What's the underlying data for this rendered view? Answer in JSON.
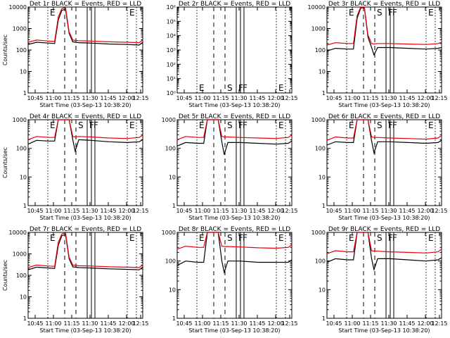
{
  "figure": {
    "x_tick_labels": [
      "10:45",
      "11:00",
      "11:15",
      "11:30",
      "11:45",
      "12:00",
      "12:15"
    ],
    "x_label": "Start Time (03-Sep-13 10:38:20)",
    "y_label": "Counts/sec",
    "black_color": "#000000",
    "red_color": "#e8000b"
  },
  "chart_data": [
    {
      "type": "line",
      "title": "Det 1r BLACK = Events, RED = LLD",
      "xlabel": "Start Time (03-Sep-13 10:38:20)",
      "ylabel": "Counts/sec",
      "y_scale": "log",
      "ylim": [
        1,
        10000
      ],
      "y_tick_labels": [
        "1",
        "10",
        "100",
        "1000",
        "10000"
      ],
      "x": [
        "10:38",
        "10:45",
        "10:55",
        "11:00",
        "11:03",
        "11:06",
        "11:09",
        "11:12",
        "11:15",
        "11:20",
        "11:30",
        "11:45",
        "12:00",
        "12:10",
        "12:13"
      ],
      "series": [
        {
          "name": "BLACK = Events",
          "values": [
            180,
            230,
            210,
            200,
            2500,
            7000,
            8000,
            600,
            240,
            220,
            210,
            190,
            180,
            170,
            230
          ]
        },
        {
          "name": "RED = LLD",
          "values": [
            230,
            290,
            260,
            250,
            3500,
            8500,
            9500,
            700,
            290,
            270,
            260,
            240,
            230,
            220,
            290
          ]
        }
      ],
      "markers": [
        {
          "style": "dotted",
          "label": "E"
        },
        {
          "style": "dashed",
          "label": ""
        },
        {
          "style": "dashed",
          "label": ""
        },
        {
          "style": "solid",
          "label": ""
        },
        {
          "style": "solid",
          "label": ""
        },
        {
          "style": "solid",
          "label": ""
        },
        {
          "style": "dotted",
          "label": "E"
        },
        {
          "style": "dotted",
          "label": ""
        }
      ]
    },
    {
      "type": "line",
      "title": "Det 2r BLACK = Events, RED = LLD",
      "xlabel": "Start Time (03-Sep-13 10:38:20)",
      "ylabel": "",
      "y_scale": "log",
      "ylim": [
        1,
        1000000
      ],
      "y_tick_labels": [
        "10⁰",
        "10¹",
        "10²",
        "10³",
        "10⁴",
        "10⁵",
        "10⁶"
      ],
      "x": [],
      "series": [],
      "markers": [
        {
          "style": "dotted",
          "label": "E"
        },
        {
          "style": "dashed",
          "label": ""
        },
        {
          "style": "dashed",
          "label": "S"
        },
        {
          "style": "solid",
          "label": "F"
        },
        {
          "style": "solid",
          "label": "F"
        },
        {
          "style": "solid",
          "label": ""
        },
        {
          "style": "dotted",
          "label": "E"
        },
        {
          "style": "dotted",
          "label": ""
        }
      ]
    },
    {
      "type": "line",
      "title": "Det 3r BLACK = Events, RED = LLD",
      "xlabel": "Start Time (03-Sep-13 10:38:20)",
      "ylabel": "",
      "y_scale": "log",
      "ylim": [
        1,
        10000
      ],
      "y_tick_labels": [
        "1",
        "10",
        "100",
        "1000",
        "10000"
      ],
      "x": [
        "10:38",
        "10:45",
        "10:55",
        "11:00",
        "11:03",
        "11:06",
        "11:09",
        "11:12",
        "11:15",
        "11:17",
        "11:20",
        "11:30",
        "11:45",
        "12:00",
        "12:10",
        "12:13"
      ],
      "series": [
        {
          "name": "BLACK = Events",
          "values": [
            90,
            120,
            110,
            110,
            3000,
            9000,
            9500,
            400,
            130,
            60,
            130,
            130,
            120,
            110,
            120,
            130
          ]
        },
        {
          "name": "RED = LLD",
          "values": [
            170,
            220,
            200,
            200,
            4000,
            10000,
            10000,
            500,
            200,
            190,
            200,
            200,
            190,
            180,
            200,
            230
          ]
        }
      ],
      "markers": [
        {
          "style": "dotted",
          "label": "E"
        },
        {
          "style": "dashed",
          "label": ""
        },
        {
          "style": "dashed",
          "label": "S"
        },
        {
          "style": "solid",
          "label": "F"
        },
        {
          "style": "solid",
          "label": "F"
        },
        {
          "style": "solid",
          "label": ""
        },
        {
          "style": "dotted",
          "label": "E"
        },
        {
          "style": "dotted",
          "label": ""
        }
      ]
    },
    {
      "type": "line",
      "title": "Det 4r BLACK = Events, RED = LLD",
      "xlabel": "Start Time (03-Sep-13 10:38:20)",
      "ylabel": "Counts/sec",
      "y_scale": "log",
      "ylim": [
        1,
        1000
      ],
      "y_tick_labels": [
        "1",
        "10",
        "100",
        "1000"
      ],
      "x": [
        "10:38",
        "10:45",
        "10:55",
        "11:00",
        "11:03",
        "11:06",
        "11:09",
        "11:12",
        "11:15",
        "11:17",
        "11:20",
        "11:30",
        "11:45",
        "12:00",
        "12:10",
        "12:13"
      ],
      "series": [
        {
          "name": "BLACK = Events",
          "values": [
            140,
            190,
            180,
            180,
            1000,
            1000,
            1000,
            1000,
            200,
            80,
            200,
            190,
            170,
            160,
            170,
            200
          ]
        },
        {
          "name": "RED = LLD",
          "values": [
            200,
            260,
            240,
            240,
            1000,
            1000,
            1000,
            1000,
            260,
            250,
            260,
            250,
            230,
            220,
            240,
            290
          ]
        }
      ],
      "markers": [
        {
          "style": "dotted",
          "label": "E"
        },
        {
          "style": "dashed",
          "label": ""
        },
        {
          "style": "dashed",
          "label": "S"
        },
        {
          "style": "solid",
          "label": "F"
        },
        {
          "style": "solid",
          "label": "F"
        },
        {
          "style": "solid",
          "label": ""
        },
        {
          "style": "dotted",
          "label": "E"
        },
        {
          "style": "dotted",
          "label": ""
        }
      ]
    },
    {
      "type": "line",
      "title": "Det 5r BLACK = Events, RED = LLD",
      "xlabel": "Start Time (03-Sep-13 10:38:20)",
      "ylabel": "",
      "y_scale": "log",
      "ylim": [
        1,
        1000
      ],
      "y_tick_labels": [
        "1",
        "10",
        "100",
        "1000"
      ],
      "x": [
        "10:38",
        "10:45",
        "10:55",
        "11:00",
        "11:03",
        "11:06",
        "11:09",
        "11:12",
        "11:15",
        "11:17",
        "11:20",
        "11:30",
        "11:45",
        "12:00",
        "12:10",
        "12:13"
      ],
      "series": [
        {
          "name": "BLACK = Events",
          "values": [
            120,
            160,
            150,
            150,
            1000,
            1000,
            1000,
            1000,
            170,
            60,
            160,
            160,
            150,
            140,
            150,
            180
          ]
        },
        {
          "name": "RED = LLD",
          "values": [
            200,
            260,
            240,
            240,
            1000,
            1000,
            1000,
            1000,
            260,
            250,
            250,
            240,
            230,
            220,
            240,
            290
          ]
        }
      ],
      "markers": [
        {
          "style": "dotted",
          "label": "E"
        },
        {
          "style": "dashed",
          "label": ""
        },
        {
          "style": "dashed",
          "label": "S"
        },
        {
          "style": "solid",
          "label": "F"
        },
        {
          "style": "solid",
          "label": "F"
        },
        {
          "style": "solid",
          "label": ""
        },
        {
          "style": "dotted",
          "label": "E"
        },
        {
          "style": "dotted",
          "label": ""
        }
      ]
    },
    {
      "type": "line",
      "title": "Det 6r BLACK = Events, RED = LLD",
      "xlabel": "Start Time (03-Sep-13 10:38:20)",
      "ylabel": "",
      "y_scale": "log",
      "ylim": [
        1,
        1000
      ],
      "y_tick_labels": [
        "1",
        "10",
        "100",
        "1000"
      ],
      "x": [
        "10:38",
        "10:45",
        "10:55",
        "11:00",
        "11:03",
        "11:06",
        "11:09",
        "11:12",
        "11:15",
        "11:17",
        "11:20",
        "11:30",
        "11:45",
        "12:00",
        "12:10",
        "12:13"
      ],
      "series": [
        {
          "name": "BLACK = Events",
          "values": [
            130,
            170,
            160,
            160,
            1000,
            1000,
            1000,
            1000,
            180,
            70,
            170,
            170,
            160,
            150,
            160,
            190
          ]
        },
        {
          "name": "RED = LLD",
          "values": [
            190,
            250,
            230,
            230,
            1000,
            1000,
            1000,
            1000,
            250,
            240,
            240,
            230,
            220,
            210,
            230,
            280
          ]
        }
      ],
      "markers": [
        {
          "style": "dotted",
          "label": "E"
        },
        {
          "style": "dashed",
          "label": ""
        },
        {
          "style": "dashed",
          "label": "S"
        },
        {
          "style": "solid",
          "label": "F"
        },
        {
          "style": "solid",
          "label": "F"
        },
        {
          "style": "solid",
          "label": ""
        },
        {
          "style": "dotted",
          "label": "E"
        },
        {
          "style": "dotted",
          "label": ""
        }
      ]
    },
    {
      "type": "line",
      "title": "Det 7r BLACK = Events, RED = LLD",
      "xlabel": "Start Time (03-Sep-13 10:38:20)",
      "ylabel": "Counts/sec",
      "y_scale": "log",
      "ylim": [
        1,
        10000
      ],
      "y_tick_labels": [
        "1",
        "10",
        "100",
        "1000",
        "10000"
      ],
      "x": [
        "10:38",
        "10:45",
        "10:55",
        "11:00",
        "11:03",
        "11:06",
        "11:09",
        "11:12",
        "11:15",
        "11:20",
        "11:30",
        "11:45",
        "12:00",
        "12:10",
        "12:13"
      ],
      "series": [
        {
          "name": "BLACK = Events",
          "values": [
            180,
            240,
            220,
            210,
            2500,
            7000,
            8000,
            600,
            250,
            230,
            220,
            200,
            190,
            180,
            240
          ]
        },
        {
          "name": "RED = LLD",
          "values": [
            230,
            300,
            270,
            260,
            3500,
            8500,
            9500,
            700,
            300,
            280,
            270,
            250,
            240,
            230,
            300
          ]
        }
      ],
      "markers": [
        {
          "style": "dotted",
          "label": "E"
        },
        {
          "style": "dashed",
          "label": ""
        },
        {
          "style": "dashed",
          "label": ""
        },
        {
          "style": "solid",
          "label": ""
        },
        {
          "style": "solid",
          "label": ""
        },
        {
          "style": "solid",
          "label": ""
        },
        {
          "style": "dotted",
          "label": "E"
        },
        {
          "style": "dotted",
          "label": ""
        }
      ]
    },
    {
      "type": "line",
      "title": "Det 8r BLACK = Events, RED = LLD",
      "xlabel": "Start Time (03-Sep-13 10:38:20)",
      "ylabel": "",
      "y_scale": "log",
      "ylim": [
        1,
        1000
      ],
      "y_tick_labels": [
        "1",
        "10",
        "100",
        "1000"
      ],
      "x": [
        "10:38",
        "10:45",
        "10:55",
        "11:00",
        "11:03",
        "11:06",
        "11:09",
        "11:12",
        "11:15",
        "11:17",
        "11:20",
        "11:30",
        "11:45",
        "12:00",
        "12:10",
        "12:13"
      ],
      "series": [
        {
          "name": "BLACK = Events",
          "values": [
            70,
            100,
            90,
            90,
            1000,
            1000,
            1000,
            1000,
            100,
            40,
            100,
            100,
            90,
            90,
            90,
            110
          ]
        },
        {
          "name": "RED = LLD",
          "values": [
            260,
            330,
            300,
            300,
            1000,
            1000,
            1000,
            1000,
            330,
            320,
            320,
            310,
            290,
            280,
            300,
            370
          ]
        }
      ],
      "markers": [
        {
          "style": "dotted",
          "label": "E"
        },
        {
          "style": "dashed",
          "label": ""
        },
        {
          "style": "dashed",
          "label": "S"
        },
        {
          "style": "solid",
          "label": "F"
        },
        {
          "style": "solid",
          "label": "F"
        },
        {
          "style": "solid",
          "label": ""
        },
        {
          "style": "dotted",
          "label": "E"
        },
        {
          "style": "dotted",
          "label": ""
        }
      ]
    },
    {
      "type": "line",
      "title": "Det 9r BLACK = Events, RED = LLD",
      "xlabel": "Start Time (03-Sep-13 10:38:20)",
      "ylabel": "",
      "y_scale": "log",
      "ylim": [
        1,
        1000
      ],
      "y_tick_labels": [
        "1",
        "10",
        "100",
        "1000"
      ],
      "x": [
        "10:38",
        "10:45",
        "10:55",
        "11:00",
        "11:03",
        "11:06",
        "11:09",
        "11:12",
        "11:15",
        "11:17",
        "11:20",
        "11:30",
        "11:45",
        "12:00",
        "12:10",
        "12:13"
      ],
      "series": [
        {
          "name": "BLACK = Events",
          "values": [
            90,
            120,
            110,
            110,
            1000,
            1000,
            1000,
            1000,
            120,
            50,
            120,
            120,
            110,
            100,
            110,
            130
          ]
        },
        {
          "name": "RED = LLD",
          "values": [
            180,
            230,
            210,
            210,
            1000,
            1000,
            1000,
            1000,
            230,
            220,
            220,
            210,
            200,
            190,
            210,
            260
          ]
        }
      ],
      "markers": [
        {
          "style": "dotted",
          "label": "E"
        },
        {
          "style": "dashed",
          "label": ""
        },
        {
          "style": "dashed",
          "label": "S"
        },
        {
          "style": "solid",
          "label": "F"
        },
        {
          "style": "solid",
          "label": "F"
        },
        {
          "style": "solid",
          "label": ""
        },
        {
          "style": "dotted",
          "label": "E"
        },
        {
          "style": "dotted",
          "label": ""
        }
      ]
    }
  ]
}
